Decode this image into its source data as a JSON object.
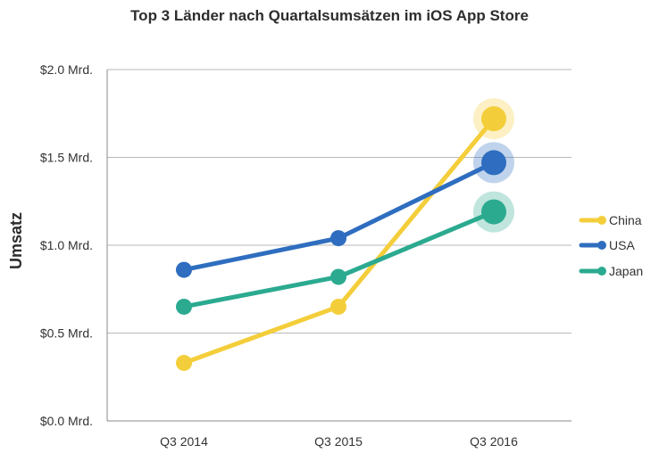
{
  "chart_data": {
    "type": "line",
    "title": "Top 3 Länder nach Quartalsumsätzen im iOS App Store",
    "xlabel": "",
    "ylabel": "Umsatz",
    "categories": [
      "Q3 2014",
      "Q3 2015",
      "Q3 2016"
    ],
    "ylim": [
      0,
      2.0
    ],
    "yticks": [
      {
        "value": 0.0,
        "label": "$0.0 Mrd."
      },
      {
        "value": 0.5,
        "label": "$0.5 Mrd."
      },
      {
        "value": 1.0,
        "label": "$1.0 Mrd."
      },
      {
        "value": 1.5,
        "label": "$1.5 Mrd."
      },
      {
        "value": 2.0,
        "label": "$2.0 Mrd."
      }
    ],
    "grid": "horizontal",
    "legend_position": "right",
    "series": [
      {
        "name": "China",
        "color": "#F4CE3A",
        "values": [
          0.33,
          0.65,
          1.72
        ]
      },
      {
        "name": "USA",
        "color": "#2E6DBF",
        "values": [
          0.86,
          1.04,
          1.47
        ]
      },
      {
        "name": "Japan",
        "color": "#2BAA90",
        "values": [
          0.65,
          0.82,
          1.19
        ]
      }
    ],
    "highlight_last_point": true
  }
}
